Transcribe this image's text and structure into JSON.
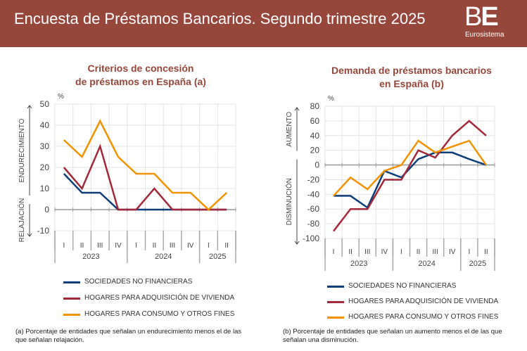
{
  "header": {
    "title": "Encuesta de Préstamos Bancarios. Segundo trimestre 2025",
    "logo_main": "BE",
    "logo_sub": "Eurosistema"
  },
  "colors": {
    "blue": "#0e3e7a",
    "red": "#a2283a",
    "orange": "#f39200",
    "header": "#96463a"
  },
  "legend": [
    "SOCIEDADES NO FINANCIERAS",
    "HOGARES PARA ADQUISICIÓN DE VIVIENDA",
    "HOGARES PARA CONSUMO Y OTROS FINES"
  ],
  "chart_data": [
    {
      "type": "line",
      "title": "Criterios de concesión de préstamos en España (a)",
      "title_lines": [
        "Criterios de concesión",
        "de préstamos en España (a)"
      ],
      "unit": "%",
      "up_label": "ENDURECIMIENTO",
      "down_label": "RELAJACIÓN",
      "quarters": [
        "I",
        "II",
        "III",
        "IV",
        "I",
        "II",
        "III",
        "IV",
        "I",
        "II"
      ],
      "years": [
        {
          "label": "2023",
          "span": 4
        },
        {
          "label": "2024",
          "span": 4
        },
        {
          "label": "2025",
          "span": 2
        }
      ],
      "ylim": [
        -10,
        50
      ],
      "yticks": [
        -10,
        0,
        10,
        20,
        30,
        40,
        50
      ],
      "series": [
        {
          "name": "SOCIEDADES NO FINANCIERAS",
          "color": "#0e3e7a",
          "values": [
            17,
            8,
            8,
            0,
            0,
            0,
            0,
            0,
            0,
            0
          ]
        },
        {
          "name": "HOGARES PARA ADQUISICIÓN DE VIVIENDA",
          "color": "#a2283a",
          "values": [
            20,
            10,
            30,
            0,
            0,
            10,
            0,
            0,
            0,
            0
          ]
        },
        {
          "name": "HOGARES PARA CONSUMO Y OTROS FINES",
          "color": "#f39200",
          "values": [
            33,
            25,
            42,
            25,
            17,
            17,
            8,
            8,
            0,
            8
          ]
        }
      ],
      "footnote": "(a) Porcentaje de entidades que señalan un endurecimiento menos el de las que señalan relajación."
    },
    {
      "type": "line",
      "title": "Demanda de préstamos bancarios en España (b)",
      "title_lines": [
        "Demanda de préstamos bancarios",
        "en España (b)"
      ],
      "unit": "%",
      "up_label": "AUMENTO",
      "down_label": "DISMINUCIÓN",
      "quarters": [
        "I",
        "II",
        "III",
        "IV",
        "I",
        "II",
        "III",
        "IV",
        "I",
        "II"
      ],
      "years": [
        {
          "label": "2023",
          "span": 4
        },
        {
          "label": "2024",
          "span": 4
        },
        {
          "label": "2025",
          "span": 2
        }
      ],
      "ylim": [
        -100,
        80
      ],
      "yticks": [
        -100,
        -80,
        -60,
        -40,
        -20,
        0,
        20,
        40,
        60,
        80
      ],
      "series": [
        {
          "name": "SOCIEDADES NO FINANCIERAS",
          "color": "#0e3e7a",
          "values": [
            -42,
            -42,
            -58,
            -8,
            -17,
            8,
            17,
            17,
            8,
            0
          ]
        },
        {
          "name": "HOGARES PARA ADQUISICIÓN DE VIVIENDA",
          "color": "#a2283a",
          "values": [
            -90,
            -60,
            -60,
            -20,
            -20,
            20,
            10,
            40,
            60,
            40
          ]
        },
        {
          "name": "HOGARES PARA CONSUMO Y OTROS FINES",
          "color": "#f39200",
          "values": [
            -42,
            -17,
            -33,
            -8,
            0,
            33,
            17,
            25,
            33,
            0
          ]
        }
      ],
      "footnote": "(b) Porcentaje de entidades que señalan un aumento menos el de las que señalan una disminución."
    }
  ]
}
